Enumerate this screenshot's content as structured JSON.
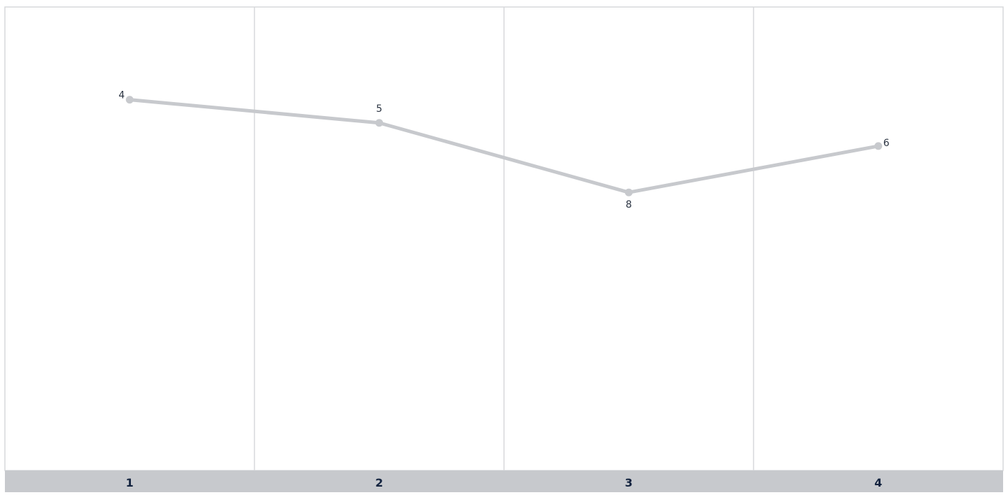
{
  "chart_data": {
    "type": "line",
    "categories": [
      "1",
      "2",
      "3",
      "4"
    ],
    "series": [
      {
        "values": [
          4,
          5,
          8,
          6
        ],
        "color": "#c7c9cd"
      }
    ],
    "ylim": [
      0,
      20
    ],
    "y_inverted": true,
    "y_axis_visible": false,
    "grid": "vertical",
    "legend": "none",
    "data_labels_shown": true,
    "colors": {
      "grid": "#d7d8db",
      "category_band": "#c7c9cd",
      "category_text": "#13233f",
      "label_text": "#2b3442",
      "line": "#c7c9cd"
    }
  }
}
